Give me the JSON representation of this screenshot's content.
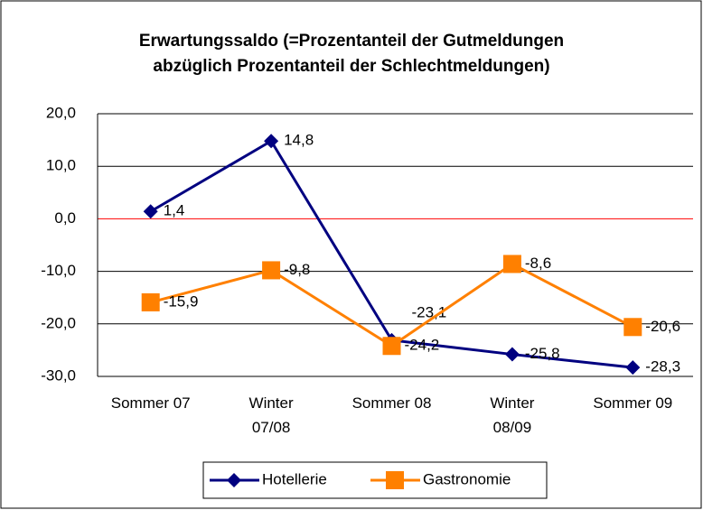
{
  "chart_data": {
    "type": "line",
    "title": "Erwartungssaldo (=Prozentanteil der Gutmeldungen\nabzüglich Prozentanteil der Schlechtmeldungen)",
    "categories": [
      "Sommer 07",
      "Winter\n07/08",
      "Sommer 08",
      "Winter\n08/09",
      "Sommer 09"
    ],
    "series": [
      {
        "name": "Hotellerie",
        "color": "#000080",
        "marker": "diamond",
        "values": [
          1.4,
          14.8,
          -23.1,
          -25.8,
          -28.3
        ],
        "value_labels": [
          "1,4",
          "14,8",
          "-23,1",
          "-25,8",
          "-28,3"
        ]
      },
      {
        "name": "Gastronomie",
        "color": "#ff8000",
        "marker": "square",
        "values": [
          -15.9,
          -9.8,
          -24.2,
          -8.6,
          -20.6
        ],
        "value_labels": [
          "-15,9",
          "-9,8",
          "-24,2",
          "-8,6",
          "-20,6"
        ]
      }
    ],
    "ylim": [
      -30,
      20
    ],
    "yticks": [
      {
        "value": -30,
        "label": "-30,0"
      },
      {
        "value": -20,
        "label": "-20,0"
      },
      {
        "value": -10,
        "label": "-10,0"
      },
      {
        "value": 0,
        "label": "0,0"
      },
      {
        "value": 10,
        "label": "10,0"
      },
      {
        "value": 20,
        "label": "20,0"
      }
    ],
    "grid": true,
    "zero_line_color": "#ff0000",
    "legend": "bottom"
  }
}
